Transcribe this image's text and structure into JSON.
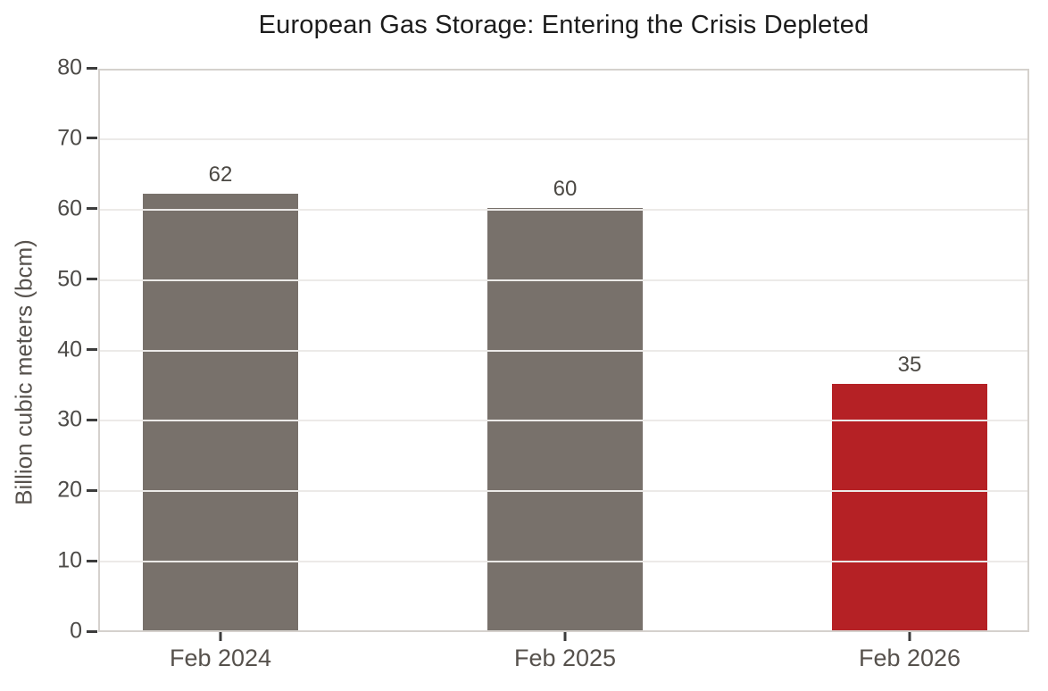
{
  "chart_data": {
    "type": "bar",
    "title": "European Gas Storage: Entering the Crisis Depleted",
    "categories": [
      "Feb 2024",
      "Feb 2025",
      "Feb 2026"
    ],
    "values": [
      62,
      60,
      35
    ],
    "value_labels": [
      "62",
      "60",
      "35"
    ],
    "bar_colors": [
      "#78716B",
      "#78716B",
      "#B52125"
    ],
    "xlabel": "",
    "ylabel": "Billion cubic meters (bcm)",
    "ylim": [
      0,
      80
    ],
    "yticks": [
      0,
      10,
      20,
      30,
      40,
      50,
      60,
      70,
      80
    ],
    "grid": "horizontal",
    "legend": "none",
    "colors": {
      "bar_default": "#78716B",
      "bar_highlight": "#B52125",
      "gridline": "#ECEAE8",
      "spine": "#D5D1CD",
      "tick": "#3C3C3C",
      "y_tick_label": "#4C4A47",
      "x_tick_label": "#56514C",
      "title": "#1C1C1C",
      "value_label": "#4B4843",
      "background": "#FFFFFF"
    }
  }
}
